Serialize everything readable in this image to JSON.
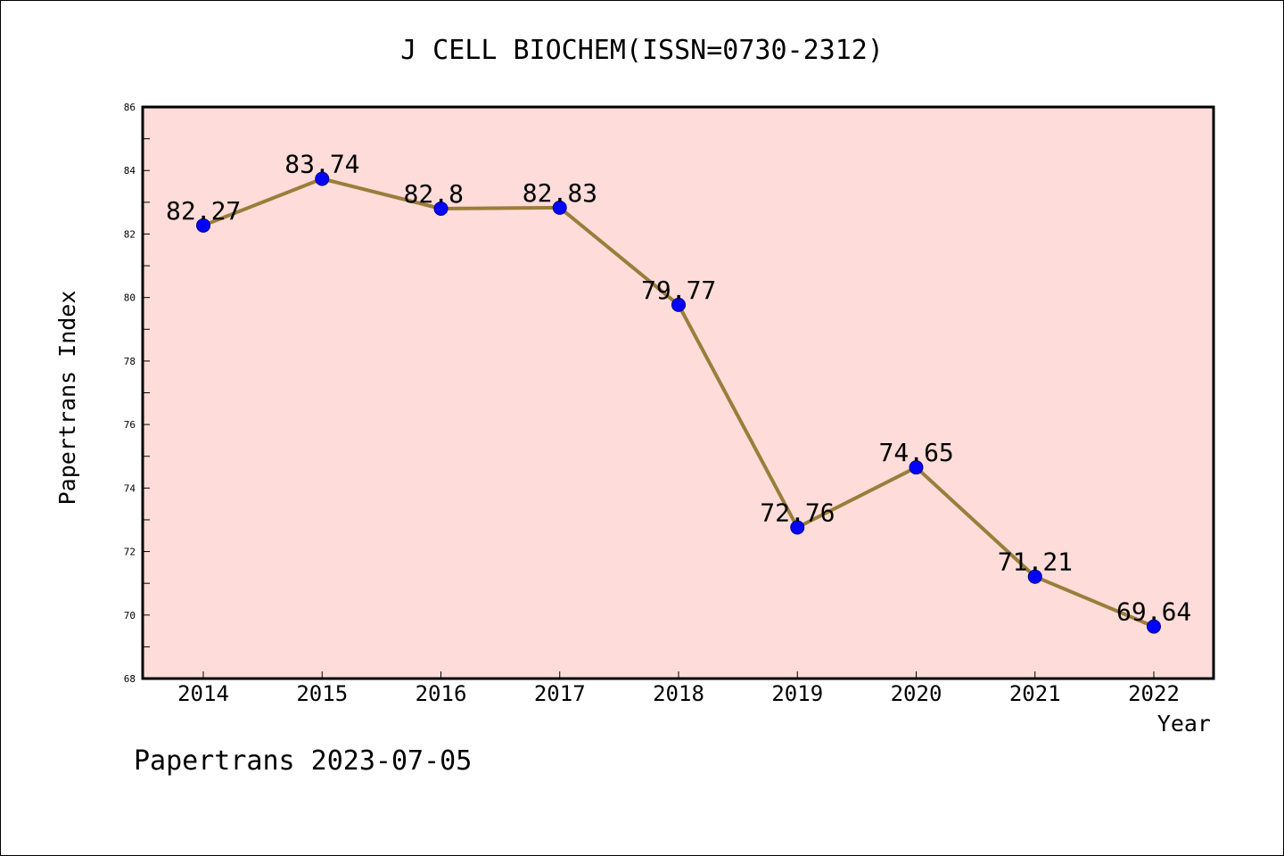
{
  "chart_data": {
    "type": "line",
    "title": "J CELL BIOCHEM(ISSN=0730-2312)",
    "xlabel": "Year",
    "ylabel": "Papertrans Index",
    "footer": "Papertrans 2023-07-05",
    "categories": [
      "2014",
      "2015",
      "2016",
      "2017",
      "2018",
      "2019",
      "2020",
      "2021",
      "2022"
    ],
    "series": [
      {
        "values": [
          82.27,
          83.74,
          82.8,
          82.83,
          79.77,
          72.76,
          74.65,
          71.21,
          69.64
        ],
        "labels": [
          "82.27",
          "83.74",
          "82.8",
          "82.83",
          "79.77",
          "72.76",
          "74.65",
          "71.21",
          "69.64"
        ],
        "line_color": "#9a7d3a",
        "marker_color": "#0000ff"
      }
    ],
    "ylim": [
      68,
      86
    ],
    "yticks": [
      "68",
      "70",
      "72",
      "74",
      "76",
      "78",
      "80",
      "82",
      "84",
      "86"
    ],
    "plot_background": "#fddcd9",
    "grid": false,
    "legend": "none"
  }
}
